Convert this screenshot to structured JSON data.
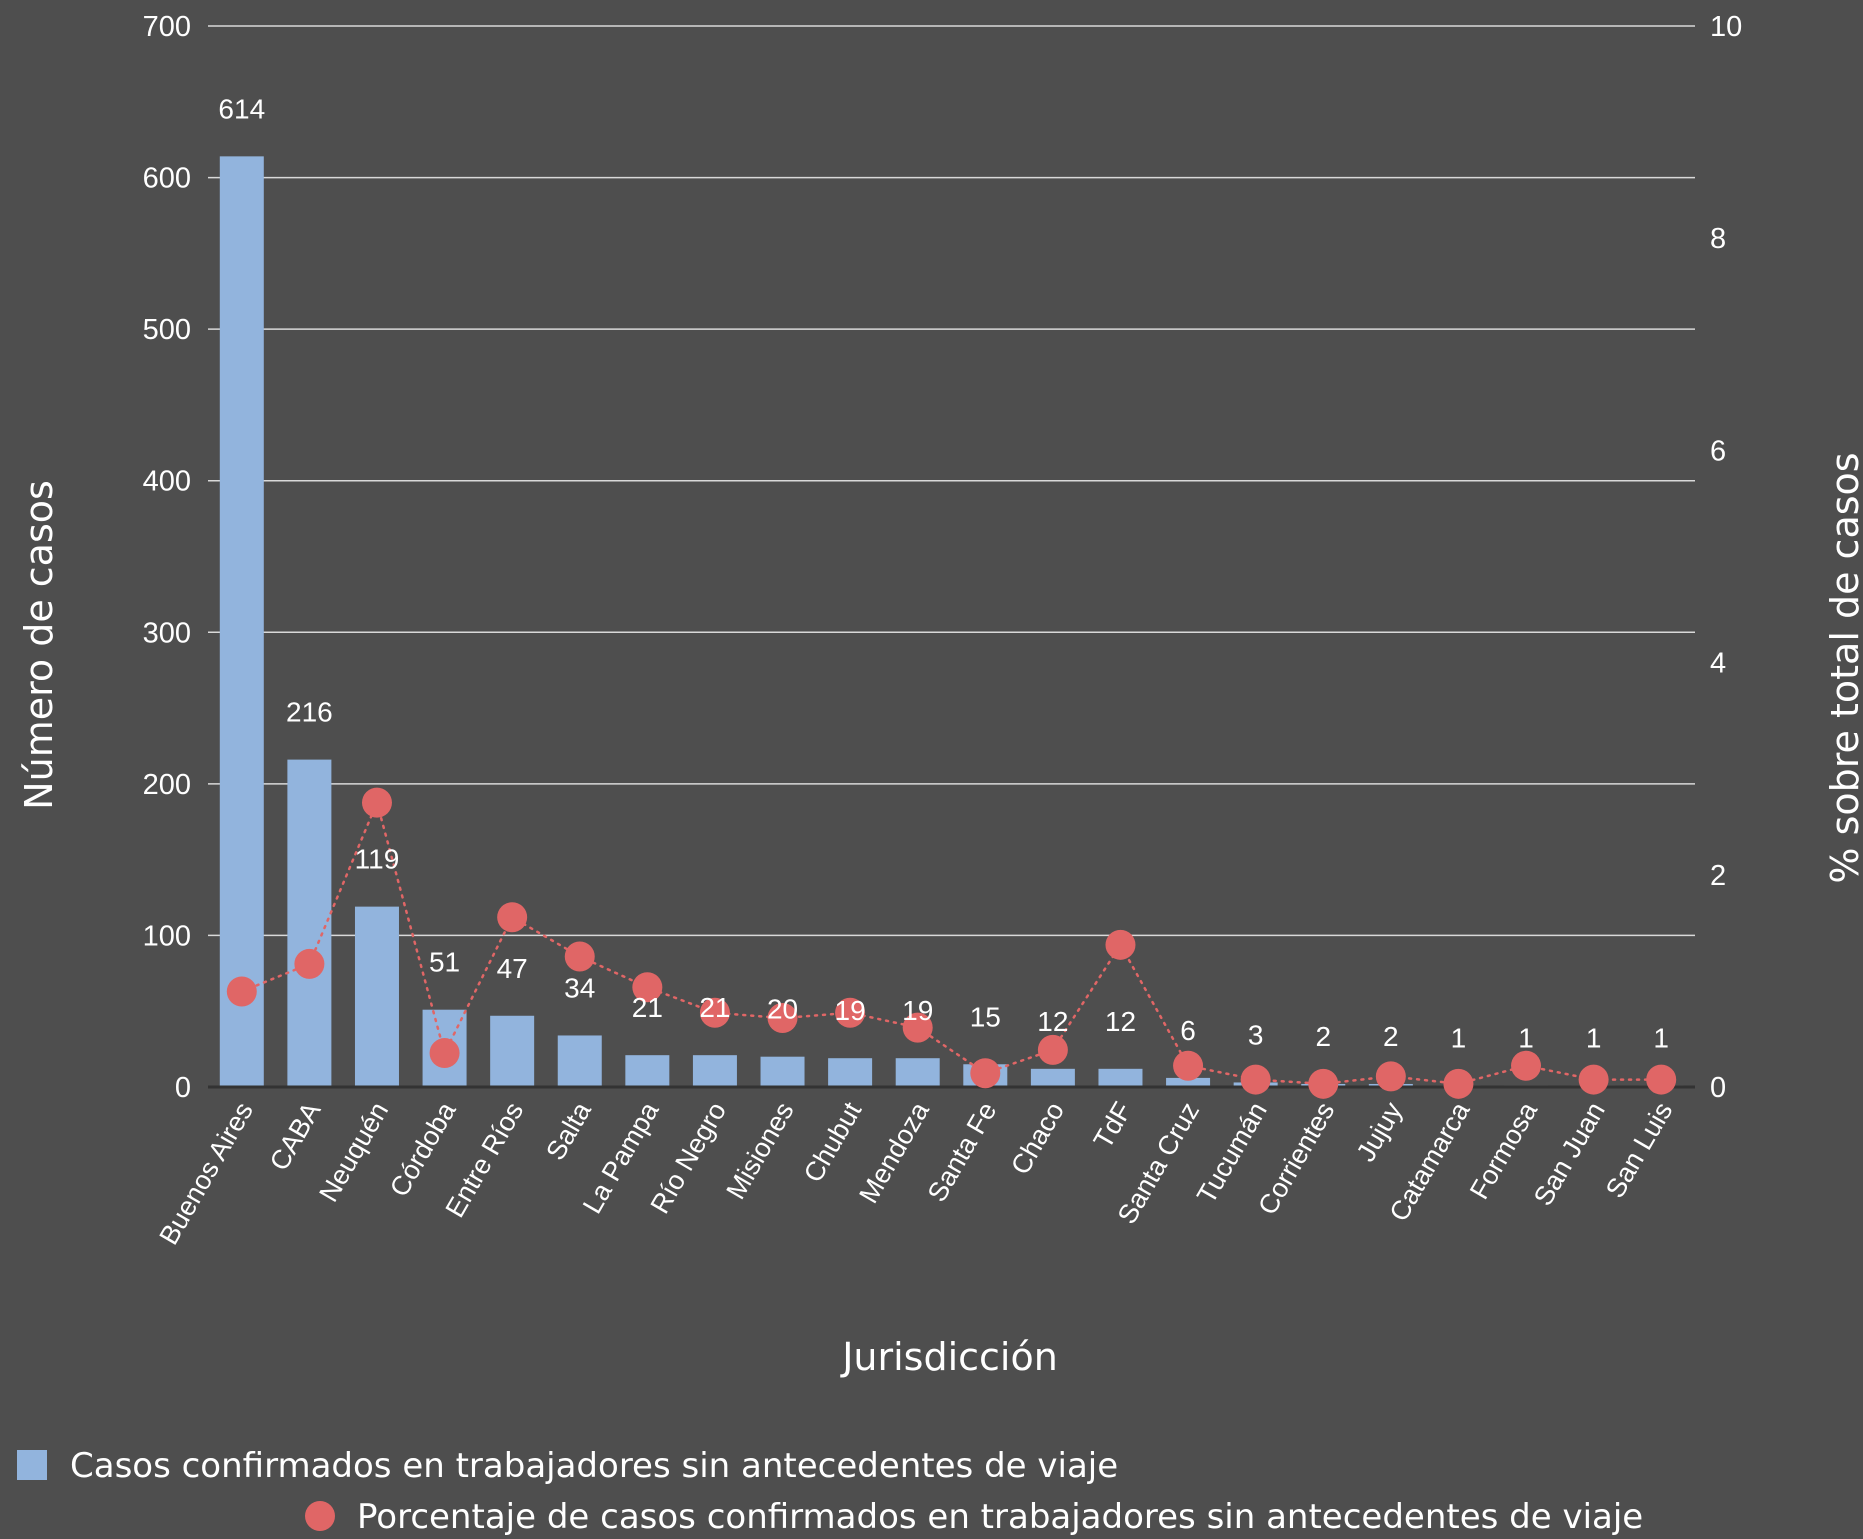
{
  "chart_data": {
    "type": "bar",
    "xlabel": "Jurisdicción",
    "ylabel": "Número de casos",
    "y2label": "% sobre total de casos",
    "ylim": [
      0,
      700
    ],
    "y2lim": [
      0,
      10
    ],
    "yticks": [
      0,
      100,
      200,
      300,
      400,
      500,
      600,
      700
    ],
    "y2ticks": [
      0,
      2,
      4,
      6,
      8,
      10
    ],
    "grid": true,
    "legend_position": "bottom",
    "categories": [
      "Buenos Aires",
      "CABA",
      "Neuquén",
      "Córdoba",
      "Entre Ríos",
      "Salta",
      "La Pampa",
      "Río Negro",
      "Misiones",
      "Chubut",
      "Mendoza",
      "Santa Fe",
      "Chaco",
      "TdF",
      "Santa Cruz",
      "Tucumán",
      "Corrientes",
      "Jujuy",
      "Catamarca",
      "Formosa",
      "San Juan",
      "San Luis"
    ],
    "series": [
      {
        "name": "Casos confirmados en trabajadores sin antecedentes de viaje",
        "kind": "bar",
        "axis": "left",
        "color": "#92b4dd",
        "values": [
          614,
          216,
          119,
          51,
          47,
          34,
          21,
          21,
          20,
          19,
          19,
          15,
          12,
          12,
          6,
          3,
          2,
          2,
          1,
          1,
          1,
          1
        ]
      },
      {
        "name": "Porcentaje de casos confirmados en trabajadores sin antecedentes de viaje",
        "kind": "line-dotted-markers",
        "axis": "right",
        "color": "#e06666",
        "values": [
          0.9,
          1.16,
          2.68,
          0.32,
          1.6,
          1.23,
          0.94,
          0.7,
          0.65,
          0.7,
          0.56,
          0.13,
          0.35,
          1.34,
          0.2,
          0.07,
          0.03,
          0.1,
          0.03,
          0.2,
          0.07,
          0.07
        ]
      }
    ]
  },
  "colors": {
    "background": "#4e4e4e",
    "grid": "#d9d9d9",
    "text": "#ffffff"
  }
}
